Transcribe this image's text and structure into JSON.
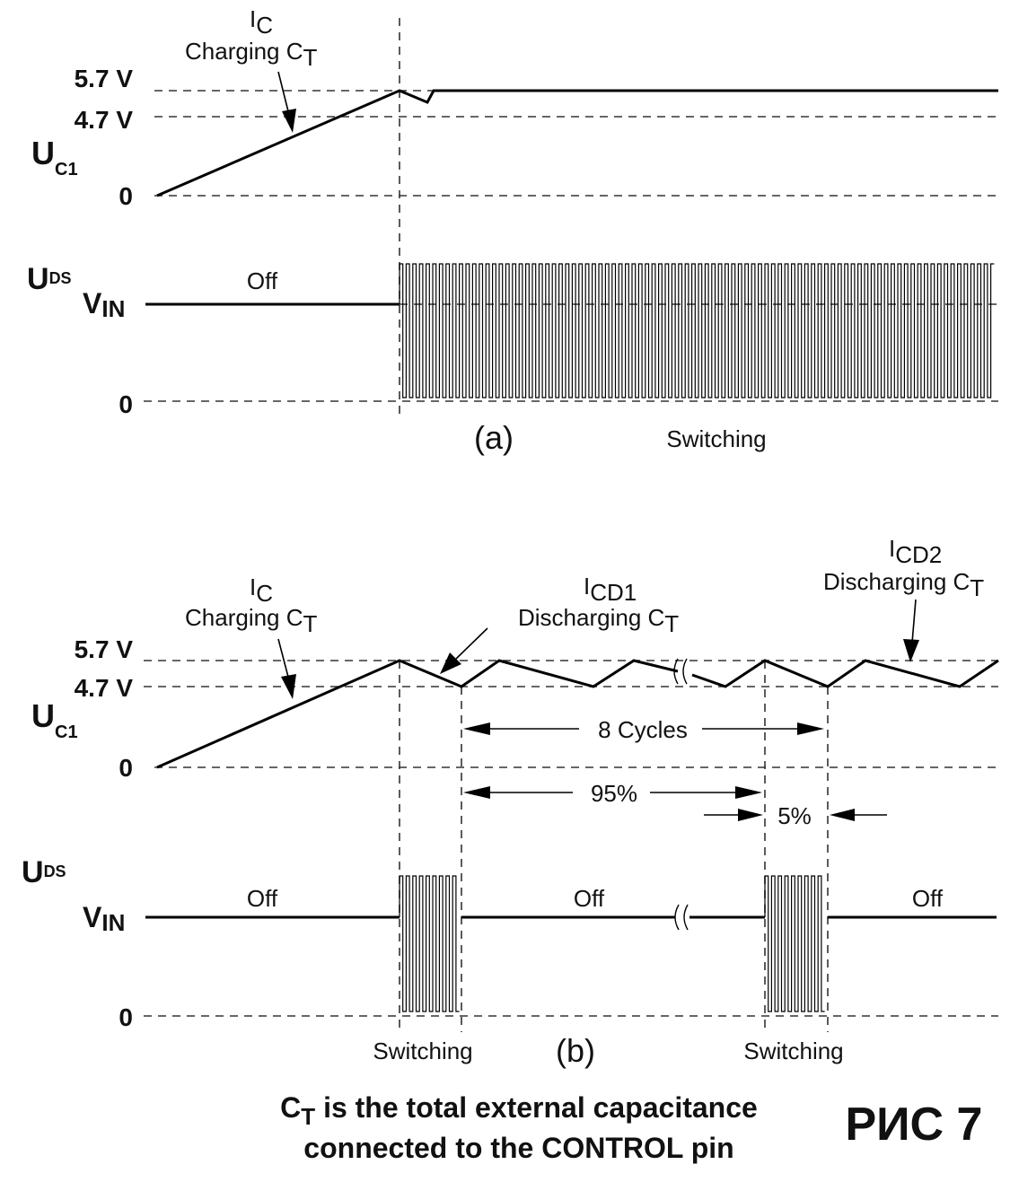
{
  "panel_a": {
    "tag": "(a)",
    "uc1_symbol": "U",
    "uc1_subscript": "C1",
    "uds_symbol": "U",
    "uds_subscript": "DS",
    "vin_symbol": "V",
    "vin_subscript": "IN",
    "level_57": "5.7 V",
    "level_47": "4.7 V",
    "level_0_top": "0",
    "level_0_bottom": "0",
    "ic_symbol": "I",
    "ic_subscript": "C",
    "charging_text": "Charging C",
    "charging_subscript": "T",
    "off_label": "Off",
    "switching_label": "Switching"
  },
  "panel_b": {
    "tag": "(b)",
    "uc1_symbol": "U",
    "uc1_subscript": "C1",
    "uds_symbol": "U",
    "uds_subscript": "DS",
    "vin_symbol": "V",
    "vin_subscript": "IN",
    "level_57": "5.7 V",
    "level_47": "4.7 V",
    "level_0_top": "0",
    "level_0_bottom": "0",
    "ic_symbol": "I",
    "ic_subscript": "C",
    "charging_text": "Charging C",
    "charging_subscript": "T",
    "icd1_symbol": "I",
    "icd1_subscript": "CD1",
    "discharging1_text": "Discharging C",
    "discharging1_subscript": "T",
    "icd2_symbol": "I",
    "icd2_subscript": "CD2",
    "discharging2_text": "Discharging C",
    "discharging2_subscript": "T",
    "cycles_label": "8 Cycles",
    "pct95_label": "95%",
    "pct5_label": "5%",
    "off_label_1": "Off",
    "off_label_2": "Off",
    "off_label_3": "Off",
    "switching_label_1": "Switching",
    "switching_label_2": "Switching"
  },
  "caption": {
    "ct_symbol": "C",
    "ct_subscript": "T",
    "line1_rest": " is the total external capacitance",
    "line2": "connected to the CONTROL pin"
  },
  "figure_tag": "РИС 7"
}
